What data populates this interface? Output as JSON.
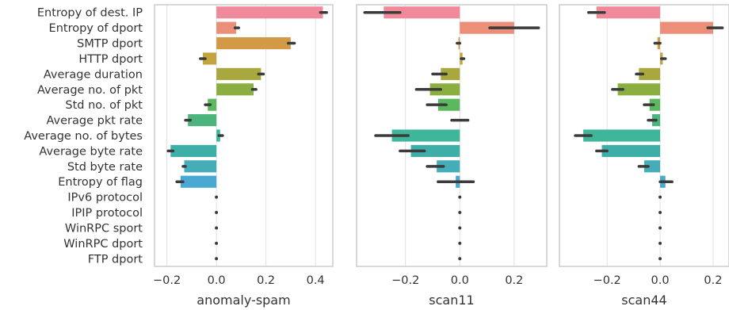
{
  "chart_data": {
    "type": "bar",
    "orientation": "horizontal",
    "categories": [
      "Entropy of dest. IP",
      "Entropy of dport",
      "SMTP dport",
      "HTTP dport",
      "Average duration",
      "Average no. of pkt",
      "Std no. of pkt",
      "Average pkt rate",
      "Average no. of bytes",
      "Average byte rate",
      "Std byte rate",
      "Entropy of flag",
      "IPv6 protocol",
      "IPIP protocol",
      "WinRPC sport",
      "WinRPC dport",
      "FTP dport"
    ],
    "colors": [
      "#f08a9b",
      "#eb8f79",
      "#d29a46",
      "#c4a43e",
      "#a8a83f",
      "#8aae40",
      "#5cb85e",
      "#4bb57d",
      "#3fb59a",
      "#3eafa8",
      "#44adb8",
      "#4aa9d2",
      "#8ab2f0",
      "#b5a2ee",
      "#d798e6",
      "#ea93cf",
      "#f08fb2"
    ],
    "grid": true,
    "panels": [
      {
        "xlabel": "anomaly-spam",
        "xlim": [
          -0.25,
          0.47
        ],
        "xticks": [
          -0.2,
          0.0,
          0.2,
          0.4
        ],
        "xtick_labels": [
          "−0.2",
          "0.0",
          "0.2",
          "0.4"
        ],
        "values": [
          0.43,
          0.08,
          0.3,
          -0.055,
          0.18,
          0.15,
          -0.035,
          -0.115,
          0.015,
          -0.185,
          -0.13,
          -0.145,
          0,
          0,
          0,
          0,
          0
        ],
        "err_low": [
          0.42,
          0.075,
          0.29,
          -0.065,
          0.17,
          0.145,
          -0.045,
          -0.125,
          0.01,
          -0.195,
          -0.135,
          -0.16,
          0,
          0,
          0,
          0,
          0
        ],
        "err_high": [
          0.445,
          0.09,
          0.315,
          -0.045,
          0.19,
          0.16,
          -0.025,
          -0.105,
          0.025,
          -0.175,
          -0.125,
          -0.135,
          0,
          0,
          0,
          0,
          0
        ]
      },
      {
        "xlabel": "scan11",
        "xlim": [
          -0.38,
          0.32
        ],
        "xticks": [
          -0.2,
          0.0,
          0.2
        ],
        "xtick_labels": [
          "−0.2",
          "0.0",
          "0.2"
        ],
        "values": [
          -0.28,
          0.2,
          -0.005,
          0.01,
          -0.07,
          -0.11,
          -0.08,
          0,
          -0.25,
          -0.18,
          -0.085,
          -0.015,
          0,
          0,
          0,
          0,
          0
        ],
        "err_low": [
          -0.35,
          0.11,
          -0.01,
          0.005,
          -0.1,
          -0.16,
          -0.12,
          -0.03,
          -0.31,
          -0.22,
          -0.12,
          -0.08,
          0,
          0,
          0,
          0,
          0
        ],
        "err_high": [
          -0.22,
          0.29,
          0,
          0.015,
          -0.05,
          -0.07,
          -0.05,
          0.03,
          -0.19,
          -0.13,
          -0.06,
          0.05,
          0,
          0,
          0,
          0,
          0
        ]
      },
      {
        "xlabel": "scan44",
        "xlim": [
          -0.38,
          0.26
        ],
        "xticks": [
          -0.2,
          0.0,
          0.2
        ],
        "xtick_labels": [
          "−0.2",
          "0.0",
          "0.2"
        ],
        "values": [
          -0.24,
          0.2,
          -0.01,
          0.01,
          -0.08,
          -0.16,
          -0.04,
          -0.03,
          -0.29,
          -0.22,
          -0.06,
          0.02,
          0,
          0,
          0,
          0,
          0
        ],
        "err_low": [
          -0.27,
          0.18,
          -0.02,
          0.005,
          -0.09,
          -0.18,
          -0.06,
          -0.045,
          -0.32,
          -0.24,
          -0.08,
          0,
          0,
          0,
          0,
          0,
          0
        ],
        "err_high": [
          -0.21,
          0.235,
          0,
          0.02,
          -0.065,
          -0.14,
          -0.025,
          -0.015,
          -0.26,
          -0.2,
          -0.045,
          0.045,
          0,
          0,
          0,
          0,
          0
        ]
      }
    ]
  }
}
